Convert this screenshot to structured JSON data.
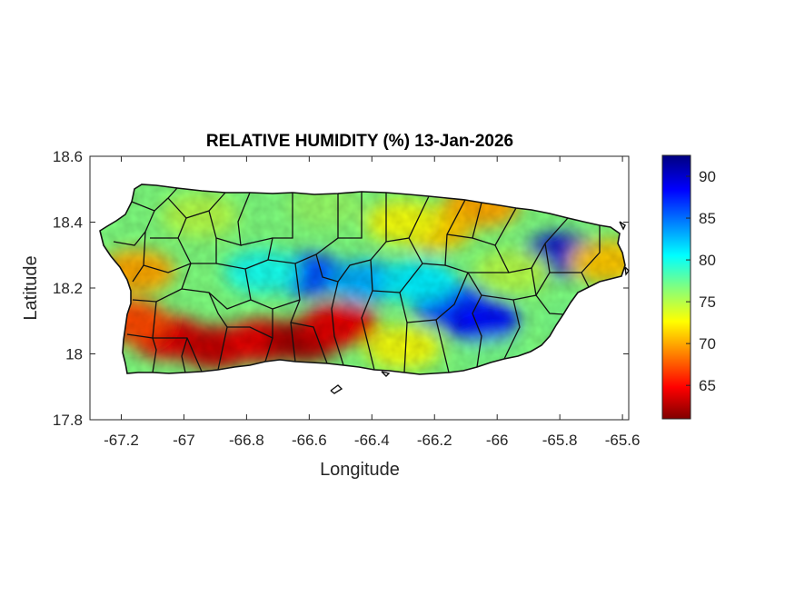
{
  "chart_data": {
    "type": "heatmap",
    "title": "RELATIVE HUMIDITY (%) 13-Jan-2026",
    "xlabel": "Longitude",
    "ylabel": "Latitude",
    "xlim": [
      -67.3,
      -65.58
    ],
    "ylim": [
      17.8,
      18.6
    ],
    "xticks": [
      -67.2,
      -67,
      -66.8,
      -66.6,
      -66.4,
      -66.2,
      -66,
      -65.8,
      -65.6
    ],
    "xtick_labels": [
      "-67.2",
      "-67",
      "-66.8",
      "-66.6",
      "-66.4",
      "-66.2",
      "-66",
      "-65.8",
      "-65.6"
    ],
    "yticks": [
      17.8,
      18,
      18.2,
      18.4,
      18.6
    ],
    "ytick_labels": [
      "17.8",
      "18",
      "18.2",
      "18.4",
      "18.6"
    ],
    "colorbar": {
      "colormap": "jet-reversed",
      "clim": [
        61,
        92.5
      ],
      "ticks": [
        65,
        70,
        75,
        80,
        85,
        90
      ],
      "tick_labels": [
        "65",
        "70",
        "75",
        "80",
        "85",
        "90"
      ],
      "low_color": "#800000",
      "high_color": "#000080"
    },
    "grid": false,
    "humidity_zones": [
      {
        "lon": -67.05,
        "lat": 18.05,
        "value": 64
      },
      {
        "lon": -66.9,
        "lat": 18.02,
        "value": 63
      },
      {
        "lon": -66.75,
        "lat": 18.04,
        "value": 64
      },
      {
        "lon": -66.62,
        "lat": 18.04,
        "value": 62
      },
      {
        "lon": -66.5,
        "lat": 18.09,
        "value": 64
      },
      {
        "lon": -67.17,
        "lat": 18.1,
        "value": 67
      },
      {
        "lon": -67.15,
        "lat": 18.25,
        "value": 70
      },
      {
        "lon": -66.6,
        "lat": 18.24,
        "value": 86
      },
      {
        "lon": -66.75,
        "lat": 18.25,
        "value": 80
      },
      {
        "lon": -66.42,
        "lat": 18.22,
        "value": 83
      },
      {
        "lon": -66.15,
        "lat": 18.15,
        "value": 86
      },
      {
        "lon": -66.05,
        "lat": 18.1,
        "value": 88
      },
      {
        "lon": -65.8,
        "lat": 18.3,
        "value": 90
      },
      {
        "lon": -66.05,
        "lat": 18.45,
        "value": 70
      },
      {
        "lon": -66.2,
        "lat": 18.38,
        "value": 71
      },
      {
        "lon": -66.3,
        "lat": 18.4,
        "value": 73
      },
      {
        "lon": -66.3,
        "lat": 18.02,
        "value": 73
      },
      {
        "lon": -65.75,
        "lat": 18.1,
        "value": 77
      },
      {
        "lon": -66.95,
        "lat": 18.42,
        "value": 75
      },
      {
        "lon": -66.25,
        "lat": 18.22,
        "value": 81
      },
      {
        "lon": -65.95,
        "lat": 18.25,
        "value": 75
      },
      {
        "lon": -65.65,
        "lat": 18.28,
        "value": 71
      },
      {
        "lon": -66.0,
        "lat": 17.98,
        "value": 77
      },
      {
        "lon": -66.55,
        "lat": 18.45,
        "value": 76
      }
    ]
  }
}
